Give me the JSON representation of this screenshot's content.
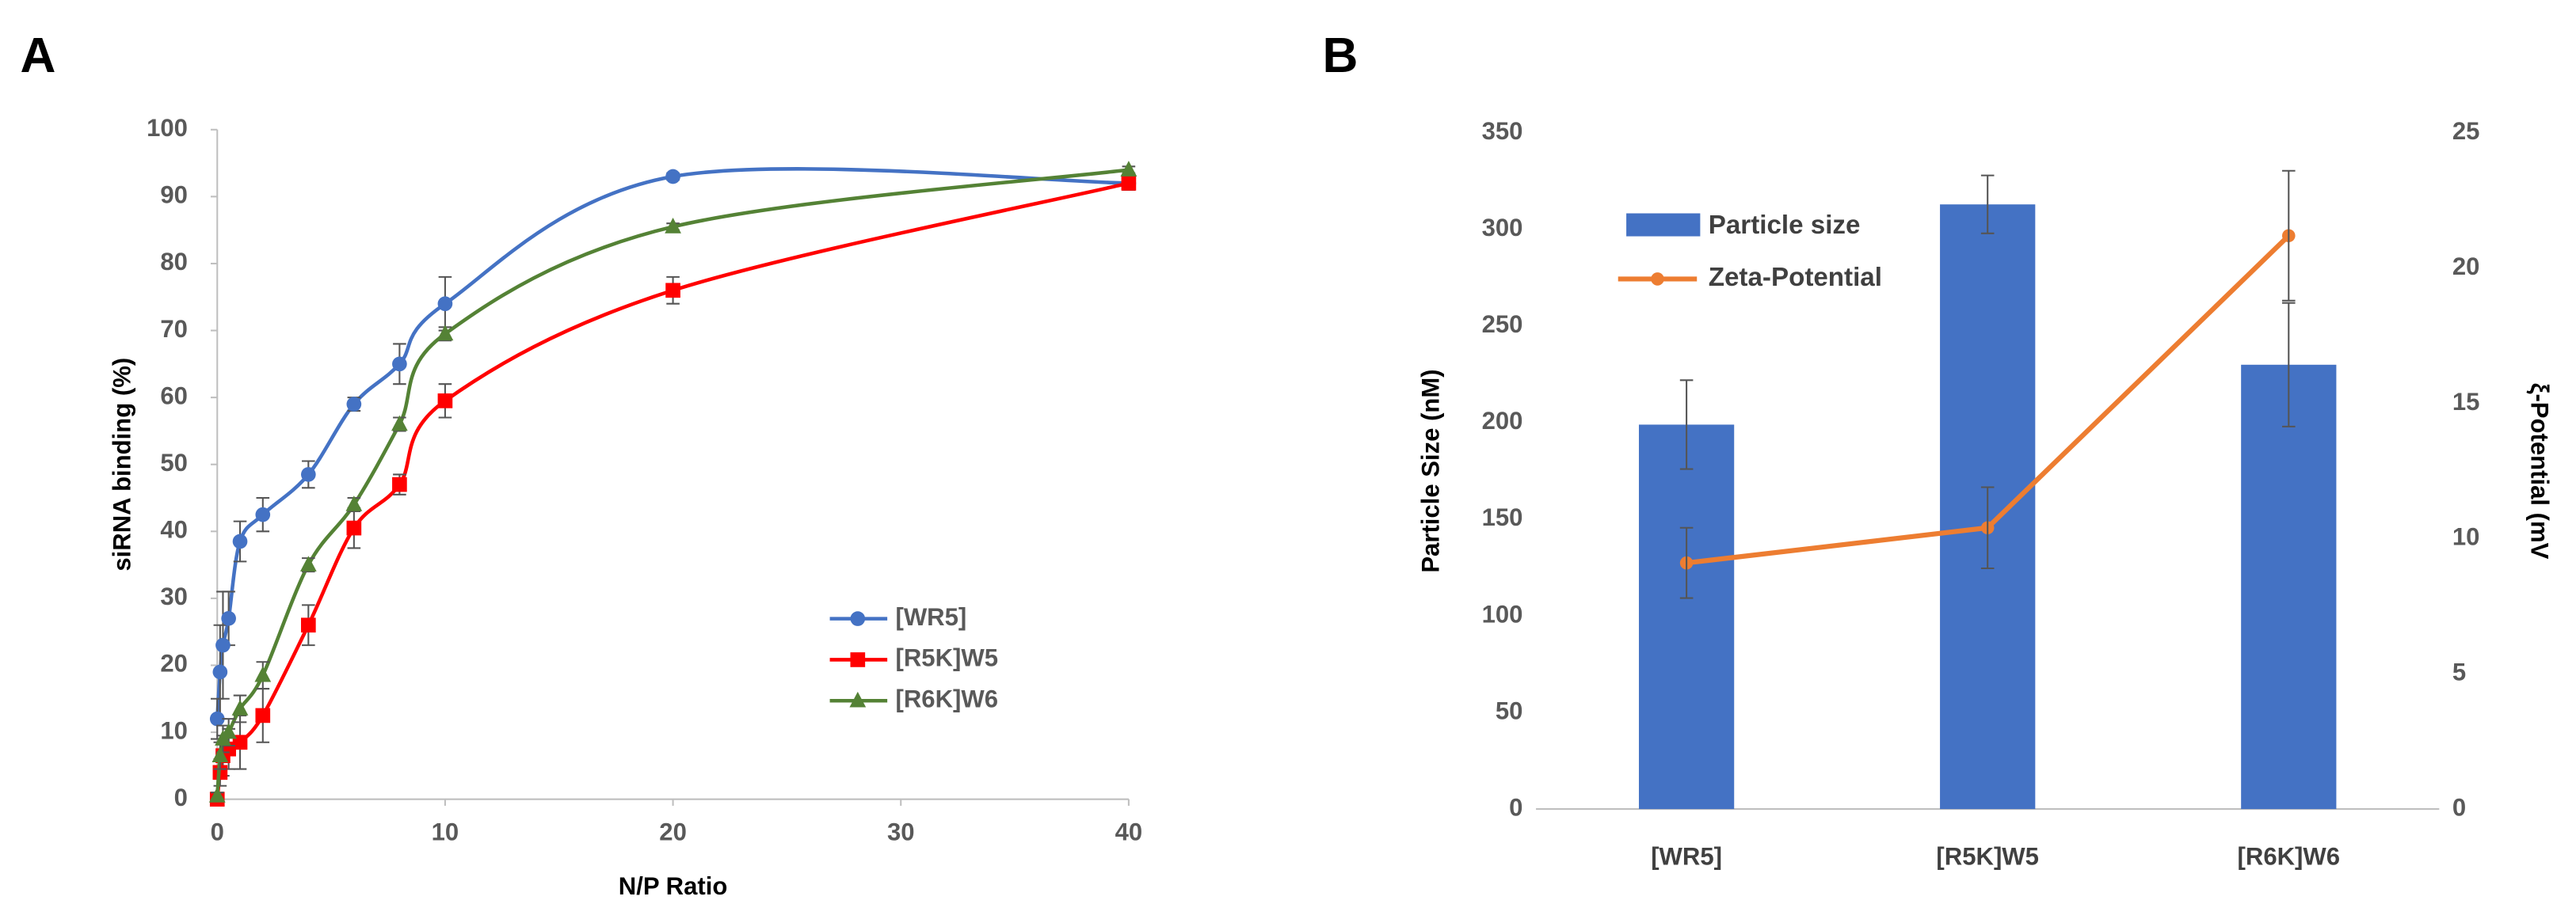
{
  "panels": [
    "A",
    "B"
  ],
  "chart_data": [
    {
      "type": "line",
      "xlabel": "N/P Ratio",
      "ylabel": "siRNA binding (%)",
      "xlim": [
        0,
        40
      ],
      "xticks": [
        0,
        10,
        20,
        30,
        40
      ],
      "ylim": [
        0,
        100
      ],
      "yticks": [
        0,
        10,
        20,
        30,
        40,
        50,
        60,
        70,
        80,
        90,
        100
      ],
      "x": [
        0,
        0.125,
        0.25,
        0.5,
        1,
        2,
        4,
        6,
        8,
        10,
        20,
        40
      ],
      "legend": "right",
      "series": [
        {
          "name": "[WR5]",
          "color": "#4472c4",
          "marker": "circle",
          "values": [
            12,
            19,
            23,
            27,
            38.5,
            42.5,
            48.5,
            59,
            65,
            74,
            93,
            92
          ],
          "errors": [
            3,
            7,
            8,
            4,
            3,
            2.5,
            2,
            1,
            3,
            4,
            0.5,
            0.5
          ]
        },
        {
          "name": "[R5K]W5",
          "color": "#ff0000",
          "marker": "square",
          "values": [
            0,
            4,
            6.5,
            7.5,
            8.5,
            12.5,
            26,
            40.5,
            47,
            59.5,
            76,
            92
          ],
          "errors": [
            0,
            2,
            3,
            3,
            4,
            4,
            3,
            3,
            1.5,
            2.5,
            2,
            1
          ]
        },
        {
          "name": "[R6K]W6",
          "color": "#548235",
          "marker": "triangle",
          "values": [
            0.5,
            6.5,
            9,
            10,
            13.5,
            18.5,
            35,
            44,
            56,
            69.5,
            85.5,
            94
          ],
          "errors": [
            0.5,
            2,
            2,
            2,
            2,
            2,
            1,
            1,
            1,
            1,
            0.5,
            0.5
          ]
        }
      ]
    },
    {
      "type": "bar",
      "ylabel": "Particle Size (nM)",
      "y2label": "ξ-Potential (mV",
      "categories": [
        "[WR5]",
        "[R5K]W5",
        "[R6K]W6"
      ],
      "ylim": [
        0,
        350
      ],
      "yticks": [
        0,
        50,
        100,
        150,
        200,
        250,
        300,
        350
      ],
      "y2lim": [
        0,
        25
      ],
      "y2ticks": [
        0,
        5,
        10,
        15,
        20,
        25
      ],
      "legend": "upper left",
      "series": [
        {
          "name": "Particle size",
          "color": "#4472c4",
          "values": [
            199,
            313,
            230
          ],
          "errors": [
            23,
            15,
            32
          ]
        },
        {
          "name": "Zeta-Potential",
          "type": "line",
          "axis": "y2",
          "color": "#ed7d31",
          "values": [
            9.1,
            10.4,
            21.2
          ],
          "errors": [
            1.3,
            1.5,
            2.4
          ]
        }
      ]
    }
  ]
}
